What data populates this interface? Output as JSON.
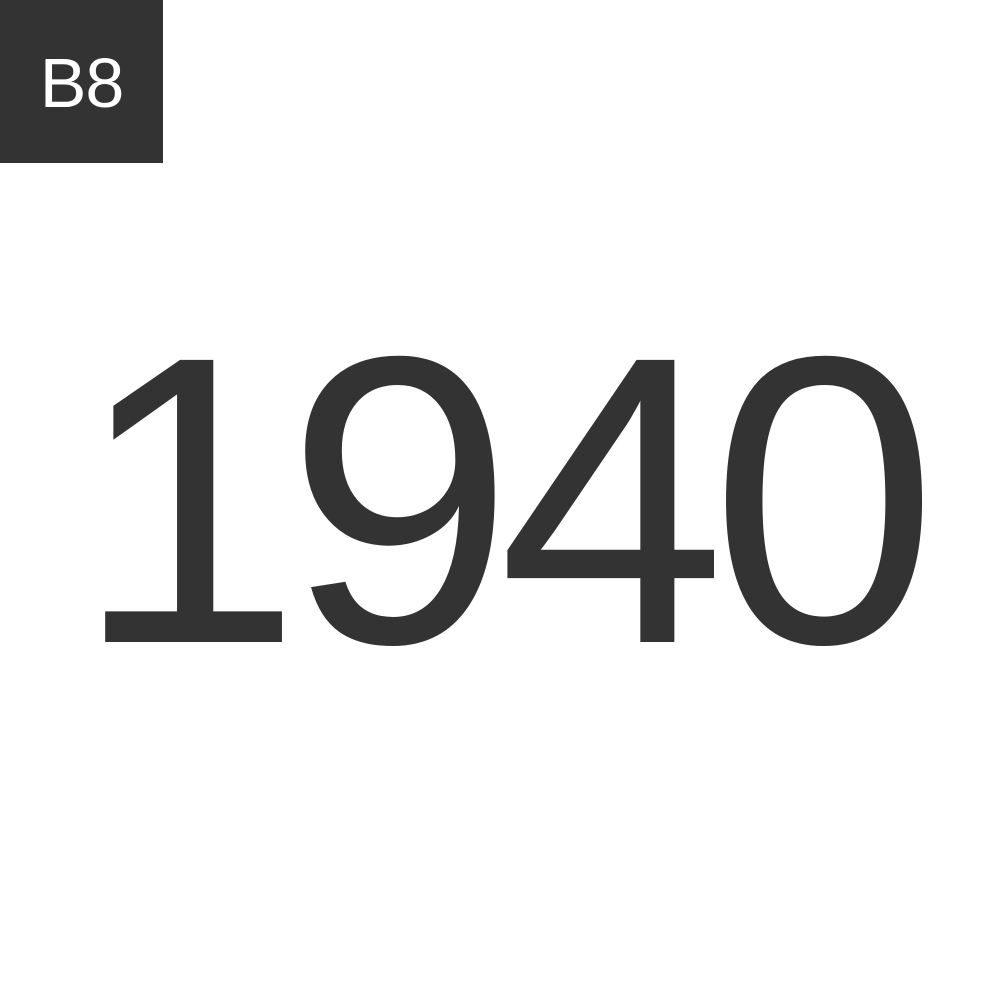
{
  "badge": {
    "label": "B8",
    "background": "#333333",
    "color": "#ffffff"
  },
  "year": {
    "text": "1940",
    "color": "#333333"
  },
  "page": {
    "background": "#ffffff"
  }
}
